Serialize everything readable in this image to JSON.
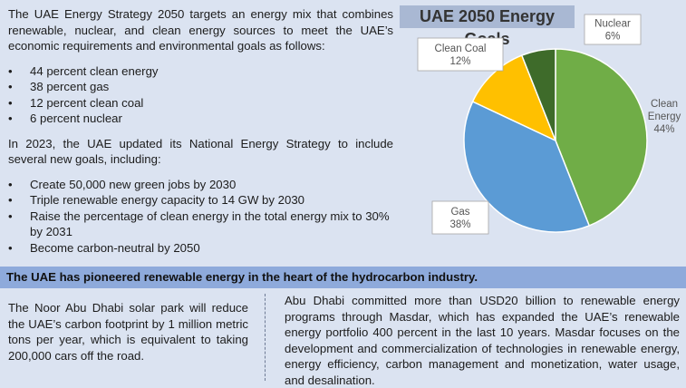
{
  "intro": "The UAE Energy Strategy 2050 targets an energy mix that combines renewable, nuclear, and clean energy sources to meet the UAE’s economic requirements and environmental goals as follows:",
  "mix_bullets": [
    "44 percent clean energy",
    "38 percent gas",
    "12 percent clean coal",
    "6 percent nuclear"
  ],
  "update_text": "In 2023, the UAE updated its National Energy Strategy to include several new goals, including:",
  "goals": [
    "Create 50,000 new green jobs by 2030",
    "Triple renewable energy capacity to 14 GW by 2030",
    "Raise the percentage of clean energy in the total energy mix to 30% by 2031",
    "Become carbon-neutral by 2050"
  ],
  "banner": "The UAE has pioneered renewable energy in the heart of the hydrocarbon industry.",
  "bottom_left": "The Noor Abu Dhabi solar park will reduce the UAE’s carbon footprint by 1 million metric tons per year, which is equivalent to taking 200,000 cars off the road.",
  "bottom_right": "Abu Dhabi committed more than USD20 billion to renewable energy programs through Masdar, which has expanded the UAE’s renewable energy portfolio 400 percent in the last 10 years. Masdar focuses on the development and commercialization of technologies in renewable energy, energy efficiency, carbon management and monetization, water usage, and desalination.",
  "chart_data": {
    "type": "pie",
    "title": "UAE 2050 Energy Goals",
    "slices": [
      {
        "label": "Clean Energy",
        "label_lines": [
          "Clean",
          "Energy"
        ],
        "pct_text": "44%",
        "value": 44,
        "color": "#70ad47"
      },
      {
        "label": "Gas",
        "label_lines": [
          "Gas"
        ],
        "pct_text": "38%",
        "value": 38,
        "color": "#5b9bd5"
      },
      {
        "label": "Clean Coal",
        "label_lines": [
          "Clean Coal"
        ],
        "pct_text": "12%",
        "value": 12,
        "color": "#ffc000"
      },
      {
        "label": "Nuclear",
        "label_lines": [
          "Nuclear"
        ],
        "pct_text": "6%",
        "value": 6,
        "color": "#3e6b2a"
      }
    ],
    "start_angle_deg": 0,
    "direction": "clockwise",
    "label_style": "callouts"
  }
}
